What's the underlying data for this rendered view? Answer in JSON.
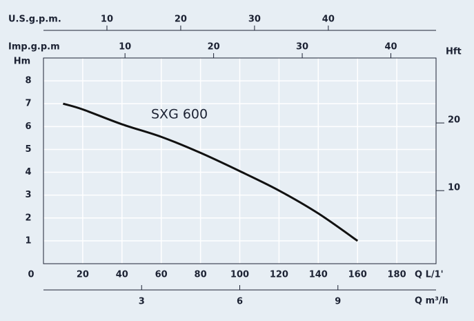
{
  "chart_data": {
    "type": "line",
    "x_label": "Q L/1'",
    "y_label": "Hm",
    "x": [
      10,
      20,
      40,
      60,
      80,
      100,
      120,
      140,
      160
    ],
    "series": [
      {
        "name": "SXG 600",
        "color": "#111111",
        "values": [
          7,
          6.75,
          6.1,
          5.55,
          4.85,
          4.05,
          3.2,
          2.2,
          1.0
        ]
      }
    ],
    "xlim": [
      0,
      200
    ],
    "xticks": [
      0,
      20,
      40,
      60,
      80,
      100,
      120,
      140,
      160,
      180
    ],
    "ylim": [
      0,
      9
    ],
    "yticks": [
      1,
      2,
      3,
      4,
      5,
      6,
      7,
      8
    ],
    "grid": true,
    "secondary_axes": [
      {
        "label": "U.S.g.p.m.",
        "xlim": [
          1.4,
          54.6
        ],
        "ticks": [
          10,
          20,
          30,
          40
        ]
      },
      {
        "label": "Imp.g.p.m",
        "xlim": [
          0.8,
          45.1
        ],
        "ticks": [
          10,
          20,
          30,
          40
        ]
      },
      {
        "label": "Q m³/h",
        "xlim": [
          0,
          12
        ],
        "ticks": [
          3,
          6,
          9
        ]
      }
    ],
    "y2_label": "Hft",
    "y2lim": [
      -0.8,
      29.6
    ],
    "y2ticks": [
      10,
      20
    ]
  }
}
